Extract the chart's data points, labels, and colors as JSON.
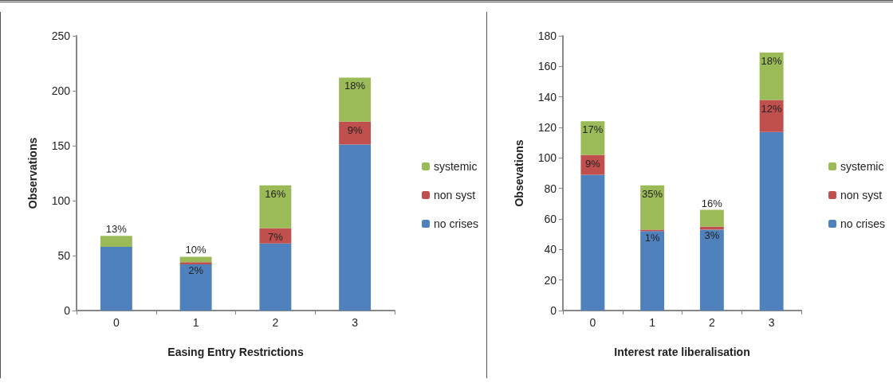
{
  "chart_data": [
    {
      "type": "bar",
      "stacked": true,
      "xlabel": "Easing Entry Restrictions",
      "ylabel": "Observations",
      "categories": [
        "0",
        "1",
        "2",
        "3"
      ],
      "ylim": [
        0,
        250
      ],
      "yticks": [
        0,
        50,
        100,
        150,
        200,
        250
      ],
      "grid": false,
      "legend": "right",
      "series": [
        {
          "name": "no crises",
          "color": "#4f81bd",
          "values": [
            58,
            42,
            61,
            151
          ]
        },
        {
          "name": "non syst",
          "color": "#c0504d",
          "values": [
            0,
            2,
            14,
            21
          ]
        },
        {
          "name": "systemic",
          "color": "#9bbb59",
          "values": [
            10,
            5,
            39,
            40
          ]
        }
      ],
      "annotations": [
        {
          "text": "13%",
          "x": "0",
          "y": 68
        },
        {
          "text": "10%",
          "x": "1",
          "y": 49
        },
        {
          "text": "2%",
          "x": "1",
          "y": 44
        },
        {
          "text": "16%",
          "x": "2",
          "y": 114
        },
        {
          "text": "7%",
          "x": "2",
          "y": 75
        },
        {
          "text": "18%",
          "x": "3",
          "y": 212
        },
        {
          "text": "9%",
          "x": "3",
          "y": 172
        }
      ]
    },
    {
      "type": "bar",
      "stacked": true,
      "xlabel": "Interest rate liberalisation",
      "ylabel": "Obsevations",
      "categories": [
        "0",
        "1",
        "2",
        "3"
      ],
      "ylim": [
        0,
        180
      ],
      "yticks": [
        0,
        20,
        40,
        60,
        80,
        100,
        120,
        140,
        160,
        180
      ],
      "grid": false,
      "legend": "right",
      "series": [
        {
          "name": "no crises",
          "color": "#4f81bd",
          "values": [
            89,
            52,
            53,
            117
          ]
        },
        {
          "name": "non syst",
          "color": "#c0504d",
          "values": [
            13,
            1,
            2,
            21
          ]
        },
        {
          "name": "systemic",
          "color": "#9bbb59",
          "values": [
            22,
            29,
            11,
            31
          ]
        }
      ],
      "annotations": [
        {
          "text": "17%",
          "x": "0",
          "y": 124
        },
        {
          "text": "9%",
          "x": "0",
          "y": 102
        },
        {
          "text": "35%",
          "x": "1",
          "y": 82
        },
        {
          "text": "1%",
          "x": "1",
          "y": 53
        },
        {
          "text": "16%",
          "x": "2",
          "y": 66
        },
        {
          "text": "3%",
          "x": "2",
          "y": 55
        },
        {
          "text": "18%",
          "x": "3",
          "y": 169
        },
        {
          "text": "12%",
          "x": "3",
          "y": 138
        }
      ]
    }
  ]
}
